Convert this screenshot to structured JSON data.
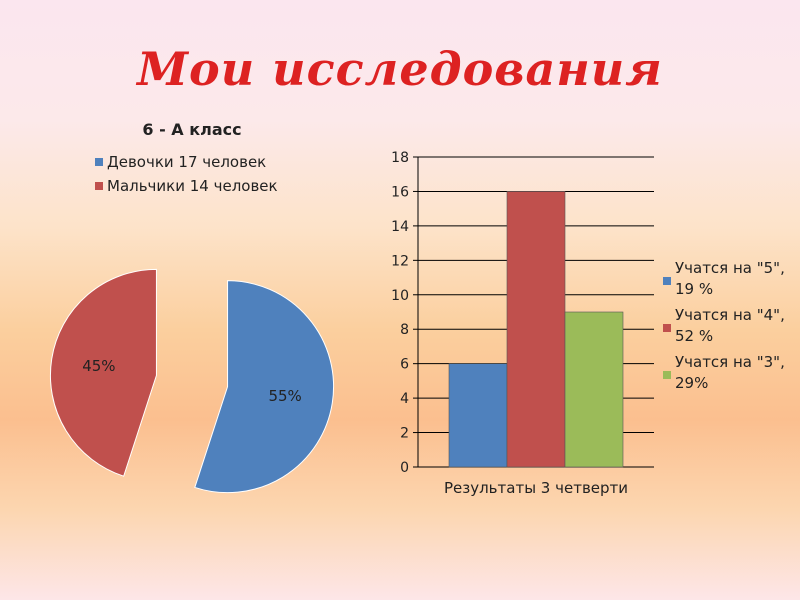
{
  "slide": {
    "title": "Мои исследования"
  },
  "chart_data": [
    {
      "type": "pie",
      "title": "6 - А класс",
      "categories": [
        "Девочки 17 человек",
        "Мальчики 14 человек"
      ],
      "values": [
        55,
        45
      ],
      "labels": [
        "55%",
        "45%"
      ],
      "colors": [
        "#4f81bd",
        "#c0504d"
      ],
      "exploded": true,
      "legend": "top"
    },
    {
      "type": "bar",
      "title": "",
      "categories": [
        "Результаты 3 четверти"
      ],
      "series": [
        {
          "name": "Учатся на \"5\", 19 %",
          "name_lines": [
            "Учатся на \"5\",",
            "19 %"
          ],
          "values": [
            6
          ],
          "color": "#4f81bd"
        },
        {
          "name": "Учатся на \"4\", 52 %",
          "name_lines": [
            "Учатся на \"4\",",
            "52 %"
          ],
          "values": [
            16
          ],
          "color": "#c0504d"
        },
        {
          "name": "Учатся на \"3\", 29%",
          "name_lines": [
            "Учатся на \"3\",",
            "29%"
          ],
          "values": [
            9
          ],
          "color": "#9bbb59"
        }
      ],
      "ylim": [
        0,
        18
      ],
      "yticks": [
        0,
        2,
        4,
        6,
        8,
        10,
        12,
        14,
        16,
        18
      ],
      "grid": true,
      "legend": "right"
    }
  ]
}
